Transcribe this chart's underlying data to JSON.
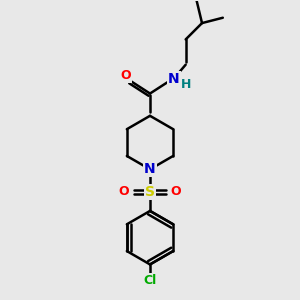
{
  "bg_color": "#e8e8e8",
  "atom_colors": {
    "C": "#000000",
    "N": "#0000cd",
    "O": "#ff0000",
    "S": "#cccc00",
    "Cl": "#00aa00",
    "H": "#008080"
  },
  "bond_color": "#000000",
  "bond_width": 1.8,
  "font_size": 9.5
}
